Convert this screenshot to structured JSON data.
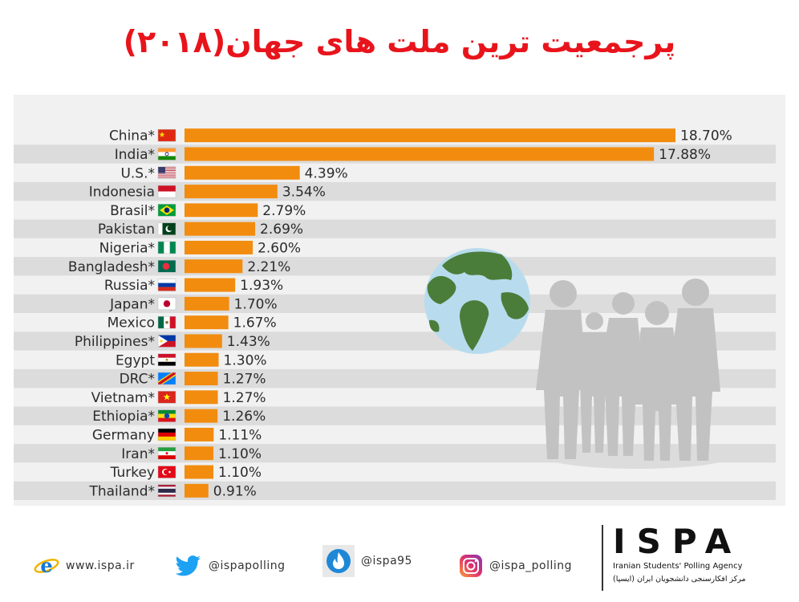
{
  "page": {
    "title": "پرجمعیت ترین ملت های جهان(۲۰۱۸)"
  },
  "chart_data": {
    "type": "bar",
    "orientation": "horizontal",
    "title": "پرجمعیت ترین ملت های جهان(۲۰۱۸)",
    "bar_color": "#f28c0f",
    "stripe_color": "#dcdcdc",
    "categories": [
      "China*",
      "India*",
      "U.S.*",
      "Indonesia",
      "Brasil*",
      "Pakistan",
      "Nigeria*",
      "Bangladesh*",
      "Russia*",
      "Japan*",
      "Mexico",
      "Philippines*",
      "Egypt",
      "DRC*",
      "Vietnam*",
      "Ethiopia*",
      "Germany",
      "Iran*",
      "Turkey",
      "Thailand*"
    ],
    "values": [
      18.7,
      17.88,
      4.39,
      3.54,
      2.79,
      2.69,
      2.6,
      2.21,
      1.93,
      1.7,
      1.67,
      1.43,
      1.3,
      1.27,
      1.27,
      1.26,
      1.11,
      1.1,
      1.1,
      0.91
    ],
    "value_labels": [
      "18.70%",
      "17.88%",
      "4.39%",
      "3.54%",
      "2.79%",
      "2.69%",
      "2.60%",
      "2.21%",
      "1.93%",
      "1.70%",
      "1.67%",
      "1.43%",
      "1.30%",
      "1.27%",
      "1.27%",
      "1.26%",
      "1.11%",
      "1.10%",
      "1.10%",
      "0.91%"
    ],
    "flags": [
      "china-flag",
      "india-flag",
      "us-flag",
      "indonesia-flag",
      "brazil-flag",
      "pakistan-flag",
      "nigeria-flag",
      "bangladesh-flag",
      "russia-flag",
      "japan-flag",
      "mexico-flag",
      "philippines-flag",
      "egypt-flag",
      "drc-flag",
      "vietnam-flag",
      "ethiopia-flag",
      "germany-flag",
      "iran-flag",
      "turkey-flag",
      "thailand-flag"
    ],
    "xlim": [
      0,
      18.7
    ],
    "grid": false,
    "legend": "none"
  },
  "decorations": {
    "globe": "globe-icon",
    "people": "people-silhouette"
  },
  "footer": {
    "website": "www.ispa.ir",
    "twitter": "@ispapolling",
    "soroush": "@ispa95",
    "instagram": "@ispa_polling",
    "logo_text": "ISPA",
    "agency_en": "Iranian Students' Polling Agency",
    "agency_fa": "مرکز افکارسنجی دانشجویان ایران (ایسپا)"
  }
}
